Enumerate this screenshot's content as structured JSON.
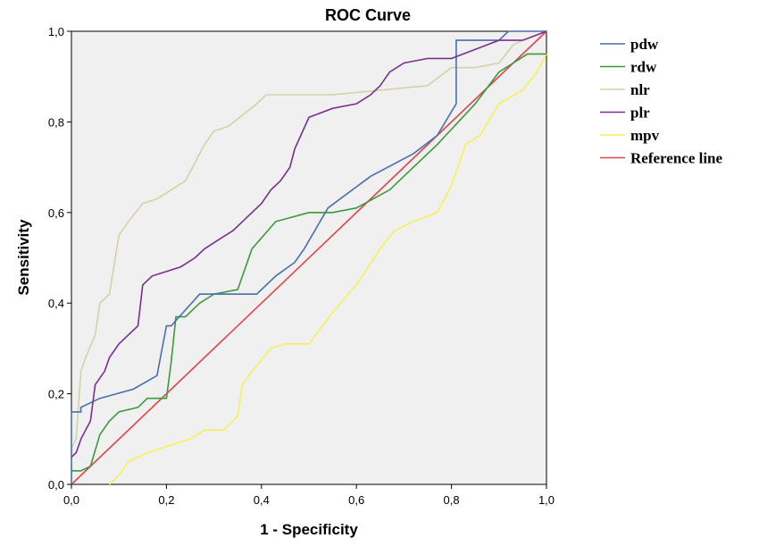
{
  "chart_data": {
    "type": "line",
    "title": "ROC Curve",
    "xlabel": "1 - Specificity",
    "ylabel": "Sensitivity",
    "xlim": [
      0,
      1
    ],
    "ylim": [
      0,
      1
    ],
    "x_ticks": [
      "0,0",
      "0,2",
      "0,4",
      "0,6",
      "0,8",
      "1,0"
    ],
    "y_ticks": [
      "0,0",
      "0,2",
      "0,4",
      "0,6",
      "0,8",
      "1,0"
    ],
    "grid": false,
    "legend_position": "right",
    "background": "#f0f0f0",
    "series": [
      {
        "name": "pdw",
        "color": "#4a6ea9",
        "x": [
          0,
          0,
          0.02,
          0.02,
          0.06,
          0.13,
          0.18,
          0.2,
          0.21,
          0.27,
          0.28,
          0.39,
          0.43,
          0.47,
          0.49,
          0.54,
          0.63,
          0.72,
          0.77,
          0.81,
          0.81,
          0.9,
          0.92,
          1.0
        ],
        "y": [
          0,
          0.16,
          0.16,
          0.17,
          0.19,
          0.21,
          0.24,
          0.35,
          0.35,
          0.42,
          0.42,
          0.42,
          0.46,
          0.49,
          0.52,
          0.61,
          0.68,
          0.73,
          0.77,
          0.84,
          0.98,
          0.98,
          1.0,
          1.0
        ]
      },
      {
        "name": "rdw",
        "color": "#3a9a3a",
        "x": [
          0,
          0.02,
          0.04,
          0.06,
          0.08,
          0.1,
          0.14,
          0.16,
          0.2,
          0.21,
          0.22,
          0.24,
          0.27,
          0.3,
          0.35,
          0.38,
          0.43,
          0.5,
          0.55,
          0.6,
          0.67,
          0.72,
          0.77,
          0.85,
          0.9,
          0.93,
          0.96,
          1.0
        ],
        "y": [
          0.03,
          0.03,
          0.04,
          0.11,
          0.14,
          0.16,
          0.17,
          0.19,
          0.19,
          0.27,
          0.37,
          0.37,
          0.4,
          0.42,
          0.43,
          0.52,
          0.58,
          0.6,
          0.6,
          0.61,
          0.65,
          0.7,
          0.75,
          0.84,
          0.91,
          0.93,
          0.95,
          0.95
        ]
      },
      {
        "name": "nlr",
        "color": "#d4d2a5",
        "x": [
          0,
          0.01,
          0.02,
          0.03,
          0.05,
          0.06,
          0.08,
          0.1,
          0.12,
          0.15,
          0.18,
          0.24,
          0.28,
          0.3,
          0.33,
          0.39,
          0.41,
          0.45,
          0.55,
          0.65,
          0.75,
          0.8,
          0.85,
          0.9,
          0.93,
          0.95,
          1.0
        ],
        "y": [
          0.08,
          0.1,
          0.25,
          0.28,
          0.33,
          0.4,
          0.42,
          0.55,
          0.58,
          0.62,
          0.63,
          0.67,
          0.75,
          0.78,
          0.79,
          0.84,
          0.86,
          0.86,
          0.86,
          0.87,
          0.88,
          0.92,
          0.92,
          0.93,
          0.97,
          0.98,
          1.0
        ]
      },
      {
        "name": "plr",
        "color": "#7a2f8f",
        "x": [
          0,
          0.01,
          0.02,
          0.04,
          0.05,
          0.07,
          0.08,
          0.1,
          0.12,
          0.14,
          0.15,
          0.17,
          0.2,
          0.23,
          0.26,
          0.28,
          0.31,
          0.34,
          0.37,
          0.4,
          0.42,
          0.44,
          0.46,
          0.47,
          0.5,
          0.55,
          0.6,
          0.63,
          0.65,
          0.67,
          0.7,
          0.75,
          0.8,
          0.85,
          0.9,
          0.95,
          1.0
        ],
        "y": [
          0.06,
          0.07,
          0.1,
          0.14,
          0.22,
          0.25,
          0.28,
          0.31,
          0.33,
          0.35,
          0.44,
          0.46,
          0.47,
          0.48,
          0.5,
          0.52,
          0.54,
          0.56,
          0.59,
          0.62,
          0.65,
          0.67,
          0.7,
          0.74,
          0.81,
          0.83,
          0.84,
          0.86,
          0.88,
          0.91,
          0.93,
          0.94,
          0.94,
          0.96,
          0.98,
          0.98,
          1.0
        ]
      },
      {
        "name": "mpv",
        "color": "#f5f05a",
        "x": [
          0.08,
          0.1,
          0.12,
          0.16,
          0.19,
          0.22,
          0.25,
          0.28,
          0.32,
          0.35,
          0.36,
          0.38,
          0.42,
          0.45,
          0.5,
          0.55,
          0.6,
          0.65,
          0.68,
          0.72,
          0.77,
          0.8,
          0.83,
          0.86,
          0.9,
          0.95,
          0.98,
          1.0
        ],
        "y": [
          0,
          0.02,
          0.05,
          0.07,
          0.08,
          0.09,
          0.1,
          0.12,
          0.12,
          0.15,
          0.22,
          0.25,
          0.3,
          0.31,
          0.31,
          0.38,
          0.44,
          0.52,
          0.56,
          0.58,
          0.6,
          0.66,
          0.75,
          0.77,
          0.84,
          0.87,
          0.91,
          0.95
        ]
      },
      {
        "name": "Reference line",
        "color": "#e0434a",
        "x": [
          0,
          1
        ],
        "y": [
          0,
          1
        ]
      }
    ]
  }
}
